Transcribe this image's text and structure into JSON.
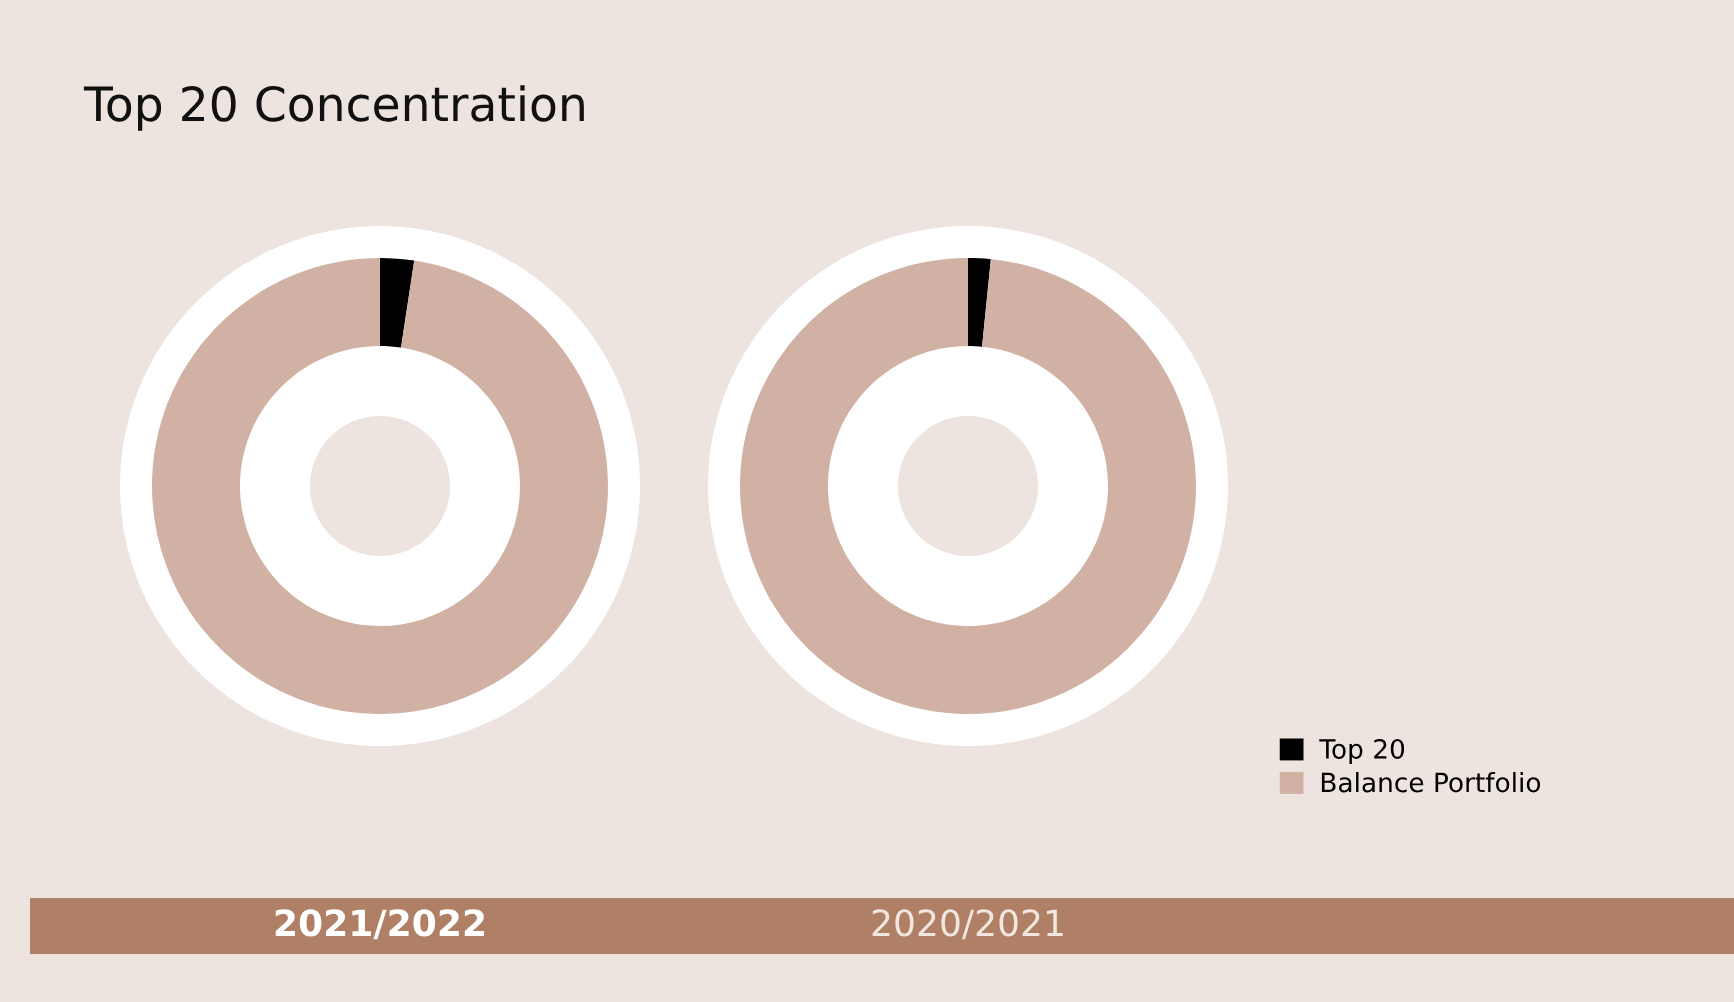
{
  "chart_data": [
    {
      "type": "donut",
      "title": "Top 20 Concentration",
      "xlabel": "2021/2022",
      "categories": [
        "Top 20",
        "Balance Portfolio"
      ],
      "values": [
        2.4,
        97.6
      ],
      "colors": [
        "#000000",
        "#d0b1a4"
      ],
      "legend": "right"
    },
    {
      "type": "donut",
      "xlabel": "2020/2021",
      "categories": [
        null,
        null
      ],
      "values": [
        1.6,
        98.4
      ],
      "colors": [
        "#000000",
        "#d0b1a4"
      ]
    }
  ]
}
